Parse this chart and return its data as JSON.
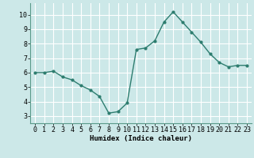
{
  "x": [
    0,
    1,
    2,
    3,
    4,
    5,
    6,
    7,
    8,
    9,
    10,
    11,
    12,
    13,
    14,
    15,
    16,
    17,
    18,
    19,
    20,
    21,
    22,
    23
  ],
  "y": [
    6.0,
    6.0,
    6.1,
    5.7,
    5.5,
    5.1,
    4.8,
    4.35,
    3.2,
    3.3,
    3.9,
    7.6,
    7.7,
    8.2,
    9.5,
    10.2,
    9.5,
    8.8,
    8.1,
    7.3,
    6.7,
    6.4,
    6.5,
    6.5
  ],
  "line_color": "#2d7d6f",
  "bg_color": "#cce8e8",
  "grid_color": "#ffffff",
  "xlabel": "Humidex (Indice chaleur)",
  "ylim": [
    2.5,
    10.8
  ],
  "xlim": [
    -0.5,
    23.5
  ],
  "yticks": [
    3,
    4,
    5,
    6,
    7,
    8,
    9,
    10
  ],
  "xticks": [
    0,
    1,
    2,
    3,
    4,
    5,
    6,
    7,
    8,
    9,
    10,
    11,
    12,
    13,
    14,
    15,
    16,
    17,
    18,
    19,
    20,
    21,
    22,
    23
  ],
  "xlabel_fontsize": 6.5,
  "tick_fontsize": 6.0,
  "linewidth": 1.0,
  "markersize": 2.0
}
